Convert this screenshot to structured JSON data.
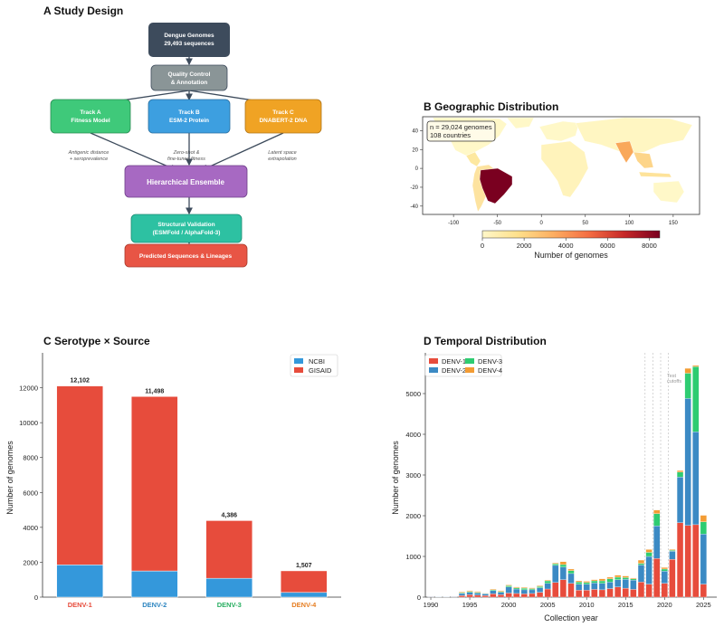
{
  "panel_a": {
    "title": "A  Study Design",
    "boxes": {
      "genomes": [
        "Dengue Genomes",
        "29,493 sequences"
      ],
      "qc": [
        "Quality Control",
        "& Annotation"
      ],
      "track_a": [
        "Track A",
        "Fitness Model"
      ],
      "track_b": [
        "Track B",
        "ESM-2 Protein"
      ],
      "track_c": [
        "Track C",
        "DNABERT-2 DNA"
      ],
      "ensemble": [
        "Hierarchical Ensemble"
      ],
      "validation": [
        "Structural Validation",
        "(ESMFold / AlphaFold-3)"
      ],
      "predicted": [
        "Predicted Sequences & Lineages"
      ]
    },
    "edge_labels": {
      "a": [
        "Antigenic distance",
        "+ seroprevalence"
      ],
      "b": [
        "Zero-shot &",
        "fine-tuned fitness"
      ],
      "c": [
        "Latent space",
        "extrapolation"
      ]
    },
    "colors": {
      "genomes": "#3d4b5c",
      "qc": "#8a9597",
      "track_a": "#3fc97a",
      "track_b": "#3d9fe0",
      "track_c": "#f0a324",
      "ensemble": "#a769c2",
      "validation": "#2dc1a2",
      "predicted": "#e85545"
    }
  },
  "panel_b": {
    "title": "B  Geographic Distribution",
    "annotation": [
      "n = 29,024 genomes",
      "108 countries"
    ],
    "colorbar_label": "Number of genomes",
    "colorbar_ticks": [
      "0",
      "2000",
      "4000",
      "6000",
      "8000"
    ],
    "colorbar_max": 8500
  },
  "panel_c": {
    "title": "C  Serotype × Source",
    "chart_data": {
      "type": "bar",
      "stacked": true,
      "categories": [
        "DENV-1",
        "DENV-2",
        "DENV-3",
        "DENV-4"
      ],
      "category_colors": [
        "#e74c3c",
        "#2e86c1",
        "#27ae60",
        "#e67e22"
      ],
      "series": [
        {
          "name": "NCBI",
          "color": "#3498db",
          "values": [
            1850,
            1500,
            1080,
            270
          ]
        },
        {
          "name": "GISAID",
          "color": "#e74c3c",
          "values": [
            10252,
            9998,
            3306,
            1237
          ]
        }
      ],
      "totals": [
        "12,102",
        "11,498",
        "4,386",
        "1,507"
      ],
      "ylabel": "Number of genomes",
      "yticks": [
        "0",
        "2000",
        "4000",
        "6000",
        "8000",
        "10000",
        "12000"
      ],
      "ylim": [
        0,
        14000
      ],
      "legend": "top-right"
    }
  },
  "panel_d": {
    "title": "D  Temporal Distribution",
    "cutoff_label": [
      "Test",
      "cutoffs"
    ],
    "chart_data": {
      "type": "bar",
      "stacked": true,
      "x": [
        1990,
        1991,
        1992,
        1993,
        1994,
        1995,
        1996,
        1997,
        1998,
        1999,
        2000,
        2001,
        2002,
        2003,
        2004,
        2005,
        2006,
        2007,
        2008,
        2009,
        2010,
        2011,
        2012,
        2013,
        2014,
        2015,
        2016,
        2017,
        2018,
        2019,
        2020,
        2021,
        2022,
        2023,
        2024,
        2025
      ],
      "series": [
        {
          "name": "DENV-1",
          "color": "#e74c3c",
          "values": [
            10,
            5,
            5,
            10,
            40,
            60,
            50,
            40,
            80,
            60,
            100,
            90,
            80,
            90,
            120,
            200,
            360,
            430,
            340,
            170,
            170,
            190,
            180,
            210,
            250,
            220,
            190,
            370,
            320,
            950,
            340,
            930,
            1830,
            1760,
            1780,
            320
          ]
        },
        {
          "name": "DENV-2",
          "color": "#3b8ac4",
          "values": [
            10,
            5,
            5,
            10,
            50,
            60,
            50,
            40,
            80,
            60,
            150,
            110,
            100,
            90,
            110,
            140,
            420,
            310,
            240,
            150,
            150,
            160,
            160,
            160,
            180,
            220,
            230,
            420,
            680,
            800,
            300,
            200,
            1120,
            3120,
            2280,
            1230
          ]
        },
        {
          "name": "DENV-3",
          "color": "#2ecc71",
          "values": [
            0,
            0,
            0,
            0,
            20,
            20,
            20,
            10,
            20,
            20,
            30,
            30,
            40,
            30,
            30,
            60,
            40,
            60,
            70,
            50,
            40,
            50,
            60,
            80,
            60,
            40,
            30,
            40,
            100,
            300,
            50,
            20,
            120,
            620,
            1600,
            300
          ]
        },
        {
          "name": "DENV-4",
          "color": "#f39c34",
          "values": [
            0,
            0,
            0,
            0,
            20,
            20,
            20,
            10,
            20,
            20,
            20,
            20,
            20,
            20,
            20,
            20,
            20,
            70,
            40,
            30,
            30,
            30,
            50,
            40,
            50,
            40,
            20,
            80,
            70,
            90,
            40,
            20,
            40,
            120,
            30,
            160
          ]
        }
      ],
      "xlabel": "Collection year",
      "ylabel": "Number of genomes",
      "xticks": [
        "1990",
        "1995",
        "2000",
        "2005",
        "2010",
        "2015",
        "2020",
        "2025"
      ],
      "yticks": [
        "0",
        "1000",
        "2000",
        "3000",
        "4000",
        "5000"
      ],
      "ylim": [
        0,
        6000
      ],
      "cutoff_years": [
        2017,
        2018,
        2019,
        2020
      ],
      "legend": "top-left"
    }
  }
}
